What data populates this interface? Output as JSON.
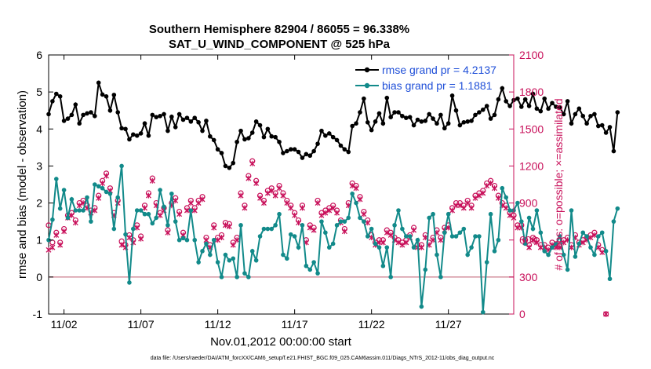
{
  "chart_data": {
    "type": "line",
    "title": "Southern Hemisphere 82904 / 86055 = 96.338%",
    "subtitle": "SAT_U_WIND_COMPONENT @ 525 hPa",
    "xlabel": "Nov.01,2012 00:00:00 start",
    "ylabel": "rmse and bias (model - observation)",
    "ylabel_right": "# of obs: o=possible; ×=assimilated",
    "footnote": "data file: /Users/raeder/DAI/ATM_forcXX/CAM6_setup/f.e21.FHIST_BGC.f09_025.CAM6assim.011/Diags_NTrS_2012-11/obs_diag_output.nc",
    "x_ticks": [
      "11/02",
      "11/07",
      "11/12",
      "11/17",
      "11/22",
      "11/27"
    ],
    "x_tick_days": [
      2,
      7,
      12,
      17,
      22,
      27
    ],
    "xlim_days": [
      1,
      31.25
    ],
    "ylim": [
      -1,
      6
    ],
    "y_ticks": [
      -1,
      0,
      1,
      2,
      3,
      4,
      5,
      6
    ],
    "ylim_right": [
      0,
      2100
    ],
    "y_ticks_right": [
      0,
      300,
      600,
      900,
      1200,
      1500,
      1800,
      2100
    ],
    "grid": false,
    "legend_position": "top-right",
    "series": [
      {
        "name": "rmse grand pr = 4.2137",
        "color": "#000000",
        "axis": "left",
        "values": [
          4.4,
          4.75,
          4.95,
          4.88,
          4.22,
          4.28,
          4.38,
          4.66,
          4.15,
          4.38,
          4.42,
          4.45,
          4.35,
          5.25,
          4.93,
          4.88,
          4.5,
          4.92,
          4.45,
          4.02,
          4.0,
          3.72,
          3.85,
          3.82,
          3.88,
          4.15,
          3.82,
          4.38,
          4.32,
          4.35,
          4.4,
          3.95,
          4.33,
          4.05,
          4.4,
          4.25,
          4.3,
          4.2,
          4.3,
          4.18,
          3.95,
          4.22,
          3.8,
          3.7,
          3.45,
          3.35,
          3.0,
          2.95,
          3.08,
          3.65,
          3.95,
          3.72,
          3.75,
          3.9,
          4.2,
          4.1,
          3.78,
          4.0,
          3.8,
          3.78,
          3.65,
          3.35,
          3.4,
          3.45,
          3.45,
          3.38,
          3.22,
          3.32,
          3.28,
          3.4,
          3.6,
          3.95,
          3.82,
          3.88,
          3.78,
          3.7,
          3.55,
          3.45,
          3.38,
          4.08,
          4.15,
          4.45,
          4.82,
          4.18,
          3.97,
          4.2,
          4.42,
          4.15,
          4.84,
          4.32,
          4.45,
          4.45,
          4.35,
          4.3,
          4.32,
          4.1,
          4.25,
          4.2,
          4.22,
          4.4,
          4.28,
          4.15,
          4.38,
          4.02,
          4.15,
          4.9,
          4.5,
          4.1,
          4.18,
          4.2,
          4.22,
          4.38,
          4.45,
          4.52,
          4.62,
          4.28,
          4.38,
          4.8,
          5.1,
          4.75,
          4.62,
          4.78,
          4.82,
          4.6,
          4.8,
          4.62,
          4.95,
          4.55,
          4.48,
          4.82,
          4.55,
          4.7,
          4.6,
          4.58,
          4.4,
          4.75,
          4.15,
          4.4,
          4.55,
          4.35,
          4.15,
          4.35,
          4.4,
          4.08,
          4.1,
          3.9,
          4.05,
          3.4,
          4.45
        ]
      },
      {
        "name": "bias grand pr = 1.1881",
        "color": "#128a8a",
        "axis": "left",
        "values": [
          1.0,
          1.55,
          2.65,
          1.85,
          2.35,
          1.6,
          2.1,
          1.8,
          1.8,
          1.8,
          2.15,
          1.5,
          2.5,
          2.45,
          2.4,
          2.3,
          2.25,
          1.3,
          2.15,
          3.0,
          1.15,
          -0.15,
          1.3,
          1.8,
          1.8,
          1.7,
          1.7,
          1.45,
          1.6,
          2.35,
          1.9,
          1.4,
          2.25,
          1.5,
          1.0,
          1.05,
          1.0,
          1.8,
          1.0,
          0.4,
          0.7,
          0.9,
          0.6,
          1.0,
          0.4,
          0.0,
          0.6,
          0.45,
          0.5,
          0.0,
          1.4,
          0.1,
          0.0,
          0.7,
          0.45,
          1.1,
          1.3,
          1.3,
          1.3,
          1.4,
          1.7,
          0.6,
          0.5,
          1.15,
          1.1,
          0.8,
          1.4,
          0.3,
          0.2,
          0.4,
          0.1,
          1.5,
          1.2,
          0.8,
          0.9,
          1.4,
          1.5,
          1.5,
          1.6,
          2.25,
          2.0,
          1.6,
          1.5,
          1.1,
          1.3,
          0.9,
          0.8,
          0.3,
          0.8,
          0.0,
          1.4,
          1.8,
          1.3,
          1.1,
          1.1,
          0.8,
          1.0,
          -0.8,
          0.2,
          1.6,
          1.7,
          0.6,
          0.0,
          1.2,
          1.7,
          1.1,
          1.1,
          1.2,
          1.3,
          0.6,
          0.8,
          1.1,
          1.1,
          -0.95,
          0.4,
          1.7,
          0.7,
          1.0,
          2.4,
          2.15,
          1.8,
          1.8,
          2.0,
          1.5,
          0.9,
          1.6,
          1.3,
          1.8,
          1.2,
          0.7,
          0.6,
          0.8,
          0.9,
          1.1,
          0.6,
          0.2,
          1.8,
          0.55,
          0.9,
          1.2,
          1.1,
          0.8,
          0.6,
          1.1,
          1.2,
          0.7,
          -0.05,
          1.5,
          1.85
        ]
      }
    ],
    "obs_series": [
      {
        "name": "possible",
        "marker": "o",
        "color": "#c8105a",
        "axis": "right",
        "values": [
          720,
          580,
          660,
          580,
          690,
          800,
          820,
          760,
          900,
          920,
          880,
          840,
          860,
          960,
          1080,
          1140,
          1020,
          820,
          920,
          590,
          560,
          640,
          600,
          720,
          630,
          880,
          980,
          1100,
          900,
          820,
          860,
          680,
          900,
          940,
          830,
          660,
          860,
          920,
          860,
          920,
          950,
          620,
          560,
          720,
          620,
          640,
          740,
          730,
          580,
          620,
          980,
          880,
          1120,
          1240,
          1080,
          960,
          920,
          1000,
          1020,
          980,
          1040,
          980,
          920,
          880,
          820,
          760,
          880,
          600,
          720,
          700,
          920,
          820,
          840,
          860,
          880,
          840,
          760,
          690,
          900,
          1060,
          1040,
          950,
          830,
          760,
          640,
          580,
          600,
          600,
          680,
          660,
          620,
          600,
          580,
          600,
          640,
          700,
          560,
          560,
          640,
          580,
          620,
          680,
          620,
          700,
          720,
          860,
          900,
          900,
          880,
          920,
          880,
          960,
          980,
          1000,
          1060,
          1080,
          1040,
          960,
          900,
          880,
          820,
          800,
          720,
          720,
          600,
          560,
          620,
          600,
          560,
          560,
          540,
          580,
          560,
          560,
          600,
          620,
          560,
          640,
          580,
          600,
          620,
          640,
          660,
          560,
          520,
          0
        ]
      },
      {
        "name": "assimilated",
        "marker": "x",
        "color": "#c8105a",
        "axis": "right",
        "values": [
          520,
          540,
          640,
          560,
          670,
          780,
          800,
          740,
          880,
          900,
          860,
          820,
          840,
          940,
          1060,
          1120,
          1000,
          800,
          900,
          560,
          540,
          620,
          580,
          700,
          610,
          860,
          960,
          1080,
          880,
          800,
          840,
          660,
          880,
          920,
          810,
          640,
          840,
          900,
          840,
          900,
          930,
          600,
          540,
          700,
          600,
          620,
          720,
          710,
          560,
          600,
          960,
          860,
          1100,
          1220,
          1060,
          940,
          900,
          980,
          1000,
          960,
          1020,
          960,
          900,
          860,
          800,
          740,
          860,
          580,
          700,
          680,
          900,
          800,
          820,
          840,
          860,
          820,
          740,
          670,
          880,
          1040,
          1020,
          930,
          810,
          740,
          620,
          560,
          580,
          580,
          660,
          640,
          600,
          580,
          560,
          580,
          620,
          680,
          540,
          540,
          620,
          560,
          600,
          660,
          600,
          680,
          700,
          840,
          880,
          880,
          860,
          900,
          860,
          940,
          960,
          980,
          1040,
          1060,
          1020,
          940,
          880,
          860,
          800,
          780,
          700,
          700,
          580,
          540,
          600,
          580,
          540,
          540,
          520,
          560,
          540,
          540,
          580,
          600,
          540,
          620,
          560,
          580,
          600,
          620,
          640,
          540,
          500,
          0
        ]
      }
    ]
  }
}
